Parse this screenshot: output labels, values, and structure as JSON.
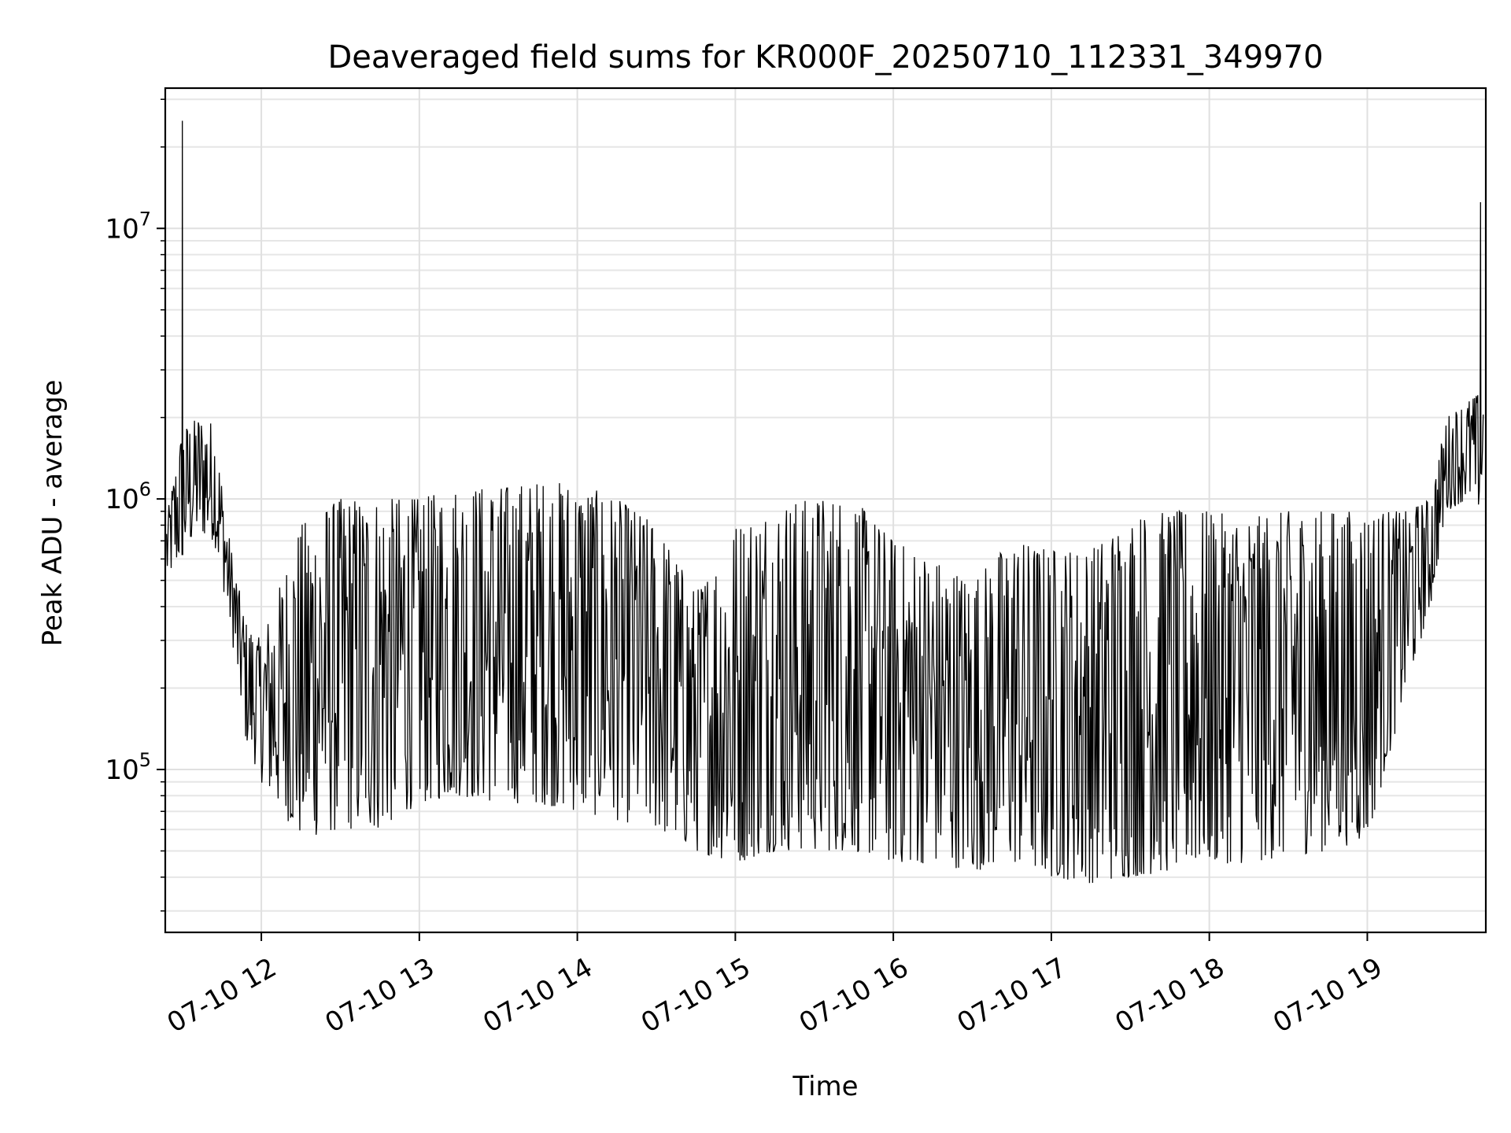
{
  "chart_data": {
    "type": "line",
    "title": "Deaveraged field sums for KR000F_20250710_112331_349970",
    "xlabel": "Time",
    "ylabel": "Peak ADU - average",
    "yscale": "log",
    "ylim": [
      25000,
      33000000
    ],
    "xlim": [
      "2025-07-10 11:23:31",
      "2025-07-10 19:45:00"
    ],
    "grid": true,
    "legend": "none",
    "line_color": "#000000",
    "x_ticks": [
      {
        "t": "2025-07-10 12:00",
        "label": "07-10 12"
      },
      {
        "t": "2025-07-10 13:00",
        "label": "07-10 13"
      },
      {
        "t": "2025-07-10 14:00",
        "label": "07-10 14"
      },
      {
        "t": "2025-07-10 15:00",
        "label": "07-10 15"
      },
      {
        "t": "2025-07-10 16:00",
        "label": "07-10 16"
      },
      {
        "t": "2025-07-10 17:00",
        "label": "07-10 17"
      },
      {
        "t": "2025-07-10 18:00",
        "label": "07-10 18"
      },
      {
        "t": "2025-07-10 19:00",
        "label": "07-10 19"
      }
    ],
    "y_ticks": [
      {
        "value": 100000,
        "base": "10",
        "exp": "5"
      },
      {
        "value": 1000000,
        "base": "10",
        "exp": "6"
      },
      {
        "value": 10000000,
        "base": "10",
        "exp": "7"
      }
    ],
    "envelope": [
      {
        "t": "2025-07-10 11:24",
        "low": 500000,
        "high": 850000
      },
      {
        "t": "2025-07-10 11:30",
        "low": 600000,
        "high": 1800000
      },
      {
        "t": "2025-07-10 11:36",
        "low": 750000,
        "high": 2000000
      },
      {
        "t": "2025-07-10 11:42",
        "low": 700000,
        "high": 1900000
      },
      {
        "t": "2025-07-10 11:48",
        "low": 350000,
        "high": 700000
      },
      {
        "t": "2025-07-10 11:54",
        "low": 130000,
        "high": 350000
      },
      {
        "t": "2025-07-10 12:00",
        "low": 90000,
        "high": 300000
      },
      {
        "t": "2025-07-10 12:15",
        "low": 55000,
        "high": 800000
      },
      {
        "t": "2025-07-10 12:30",
        "low": 60000,
        "high": 1000000
      },
      {
        "t": "2025-07-10 12:45",
        "low": 60000,
        "high": 1000000
      },
      {
        "t": "2025-07-10 13:00",
        "low": 75000,
        "high": 1000000
      },
      {
        "t": "2025-07-10 13:15",
        "low": 80000,
        "high": 1100000
      },
      {
        "t": "2025-07-10 13:30",
        "low": 75000,
        "high": 1100000
      },
      {
        "t": "2025-07-10 13:45",
        "low": 75000,
        "high": 1150000
      },
      {
        "t": "2025-07-10 14:00",
        "low": 70000,
        "high": 1150000
      },
      {
        "t": "2025-07-10 14:15",
        "low": 65000,
        "high": 1000000
      },
      {
        "t": "2025-07-10 14:30",
        "low": 60000,
        "high": 800000
      },
      {
        "t": "2025-07-10 14:45",
        "low": 50000,
        "high": 450000
      },
      {
        "t": "2025-07-10 15:00",
        "low": 45000,
        "high": 800000
      },
      {
        "t": "2025-07-10 15:15",
        "low": 50000,
        "high": 950000
      },
      {
        "t": "2025-07-10 15:30",
        "low": 50000,
        "high": 1000000
      },
      {
        "t": "2025-07-10 15:45",
        "low": 50000,
        "high": 1000000
      },
      {
        "t": "2025-07-10 16:00",
        "low": 45000,
        "high": 700000
      },
      {
        "t": "2025-07-10 16:15",
        "low": 45000,
        "high": 600000
      },
      {
        "t": "2025-07-10 16:30",
        "low": 42000,
        "high": 500000
      },
      {
        "t": "2025-07-10 16:45",
        "low": 45000,
        "high": 700000
      },
      {
        "t": "2025-07-10 17:00",
        "low": 40000,
        "high": 650000
      },
      {
        "t": "2025-07-10 17:15",
        "low": 38000,
        "high": 650000
      },
      {
        "t": "2025-07-10 17:30",
        "low": 40000,
        "high": 850000
      },
      {
        "t": "2025-07-10 17:45",
        "low": 42000,
        "high": 900000
      },
      {
        "t": "2025-07-10 18:00",
        "low": 45000,
        "high": 900000
      },
      {
        "t": "2025-07-10 18:15",
        "low": 45000,
        "high": 850000
      },
      {
        "t": "2025-07-10 18:30",
        "low": 48000,
        "high": 900000
      },
      {
        "t": "2025-07-10 18:45",
        "low": 50000,
        "high": 900000
      },
      {
        "t": "2025-07-10 19:00",
        "low": 55000,
        "high": 900000
      },
      {
        "t": "2025-07-10 19:15",
        "low": 200000,
        "high": 900000
      },
      {
        "t": "2025-07-10 19:24",
        "low": 400000,
        "high": 1000000
      },
      {
        "t": "2025-07-10 19:30",
        "low": 900000,
        "high": 2000000
      },
      {
        "t": "2025-07-10 19:38",
        "low": 1000000,
        "high": 2300000
      },
      {
        "t": "2025-07-10 19:44",
        "low": 900000,
        "high": 2500000
      }
    ],
    "spikes": [
      {
        "t": "2025-07-10 11:30",
        "value": 25000000
      },
      {
        "t": "2025-07-10 19:43",
        "value": 12500000
      }
    ]
  }
}
